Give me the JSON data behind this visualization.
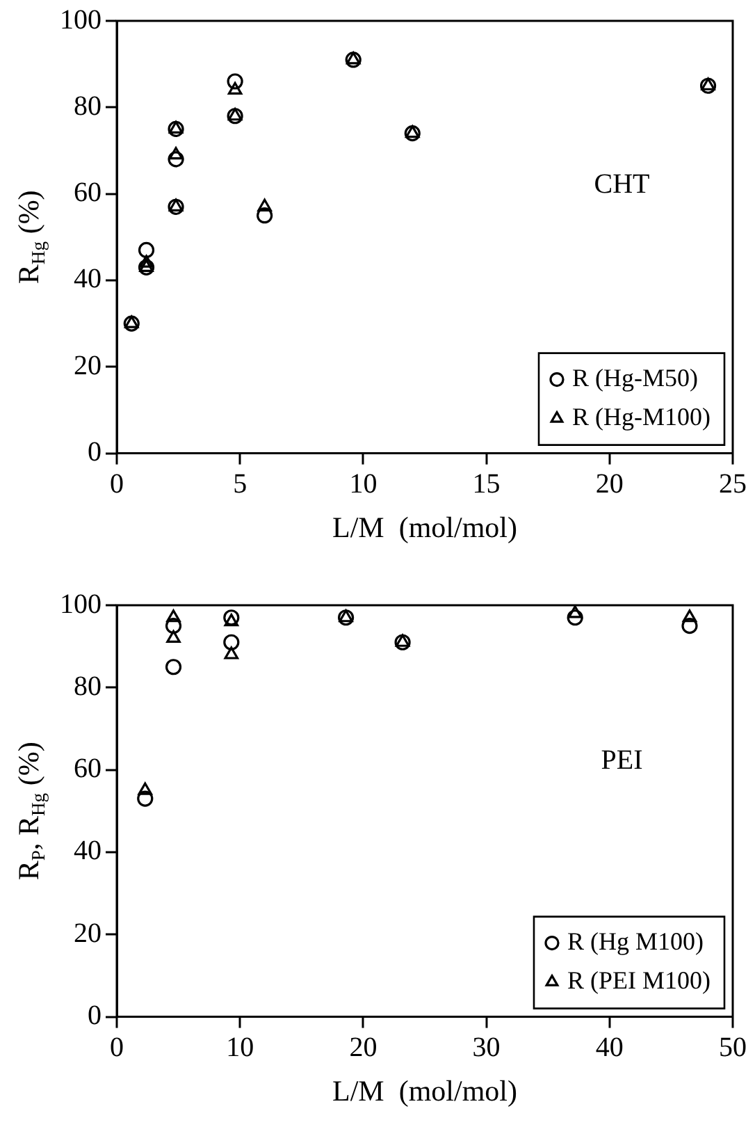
{
  "chart_data": [
    {
      "type": "scatter",
      "xlabel": "L/M  (mol/mol)",
      "ylabel": "R$_{Hg}$ (%)",
      "annotations": [
        "CHT"
      ],
      "xlim": [
        0,
        25
      ],
      "xticks": [
        0,
        5,
        10,
        15,
        20,
        25
      ],
      "ylim": [
        0,
        100
      ],
      "yticks": [
        0,
        20,
        40,
        60,
        80,
        100
      ],
      "grid": false,
      "legend": "bottom right",
      "series": [
        {
          "name": "R (Hg-M50)",
          "color": "#000000",
          "marker": "circle",
          "x": [
            0.6,
            1.2,
            1.2,
            2.4,
            2.4,
            2.4,
            4.8,
            4.8,
            6,
            9.6,
            12,
            24
          ],
          "values": [
            30,
            47,
            43,
            75,
            68,
            57,
            86,
            78,
            55,
            91,
            74,
            85
          ]
        },
        {
          "name": "R (Hg-M100)",
          "color": "#000000",
          "marker": "triangle",
          "x": [
            0.6,
            1.2,
            1.2,
            2.4,
            2.4,
            2.4,
            4.8,
            4.8,
            6,
            9.6,
            12,
            24
          ],
          "values": [
            30,
            44,
            43,
            75,
            69,
            57,
            84,
            78,
            57,
            91,
            74,
            85
          ]
        }
      ]
    },
    {
      "type": "scatter",
      "xlabel": "L/M  (mol/mol)",
      "ylabel": "R$_{P}$, R$_{Hg}$ (%)",
      "annotations": [
        "PEI"
      ],
      "xlim": [
        0,
        50
      ],
      "xticks": [
        0,
        10,
        20,
        30,
        40,
        50
      ],
      "ylim": [
        0,
        100
      ],
      "yticks": [
        0,
        20,
        40,
        60,
        80,
        100
      ],
      "grid": false,
      "legend": "bottom right",
      "series": [
        {
          "name": "R (Hg M100)",
          "color": "#000000",
          "marker": "circle",
          "x": [
            2.3,
            4.6,
            4.6,
            9.3,
            9.3,
            18.6,
            23.2,
            37.2,
            46.5
          ],
          "values": [
            53,
            95,
            85,
            97,
            91,
            97,
            91,
            97,
            95
          ]
        },
        {
          "name": "R (PEI M100)",
          "color": "#000000",
          "marker": "triangle",
          "x": [
            2.3,
            4.6,
            4.6,
            9.3,
            9.3,
            18.6,
            23.2,
            37.2,
            46.5
          ],
          "values": [
            55,
            97,
            92,
            96,
            88,
            97,
            91,
            98,
            97
          ]
        }
      ]
    }
  ]
}
